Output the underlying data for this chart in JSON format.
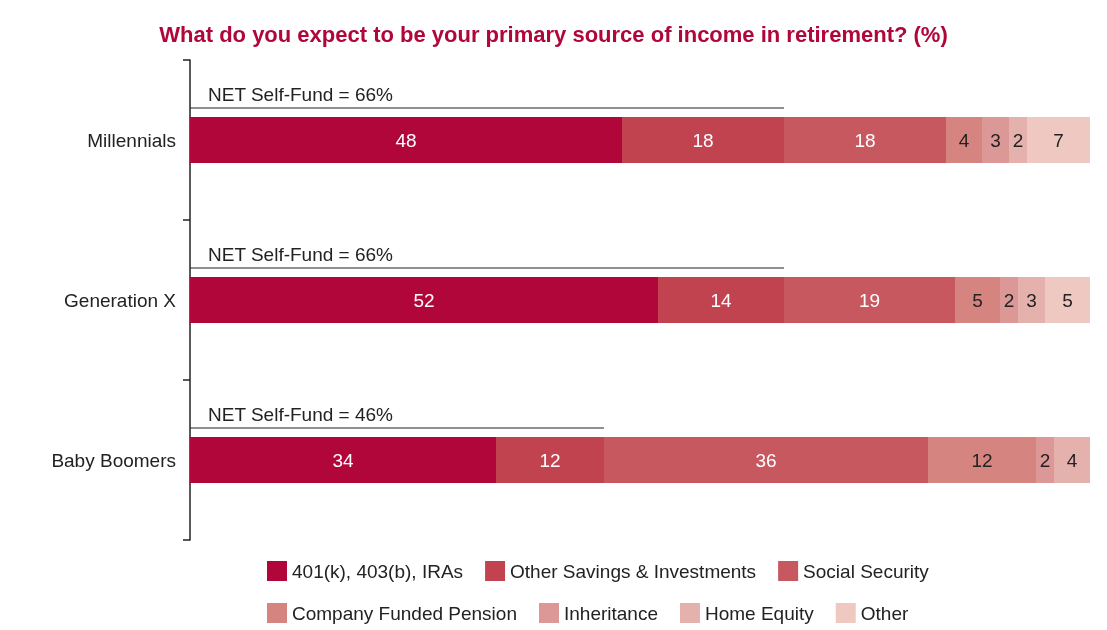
{
  "chart_data": {
    "type": "bar",
    "orientation": "horizontal",
    "stacked": true,
    "title": "What do you expect to be your primary source of income in retirement? (%)",
    "categories": [
      "Millennials",
      "Generation X",
      "Baby Boomers"
    ],
    "series": [
      {
        "name": "401(k), 403(b), IRAs",
        "color": "#b0063a",
        "values": [
          48,
          52,
          34
        ]
      },
      {
        "name": "Other Savings & Investments",
        "color": "#c1434f",
        "values": [
          18,
          14,
          12
        ]
      },
      {
        "name": "Social Security",
        "color": "#c85860",
        "values": [
          18,
          19,
          36
        ]
      },
      {
        "name": "Company Funded Pension",
        "color": "#d68480",
        "values": [
          4,
          5,
          12
        ]
      },
      {
        "name": "Inheritance",
        "color": "#dc9896",
        "values": [
          3,
          2,
          2
        ]
      },
      {
        "name": "Home Equity",
        "color": "#e5b1ac",
        "values": [
          2,
          3,
          4
        ]
      },
      {
        "name": "Other",
        "color": "#efc9c1",
        "values": [
          7,
          5,
          null
        ]
      }
    ],
    "data_labels": true,
    "legend": "bottom",
    "annotations": [
      "NET Self-Fund = 66%",
      "NET Self-Fund = 66%",
      "NET Self-Fund = 46%"
    ]
  }
}
